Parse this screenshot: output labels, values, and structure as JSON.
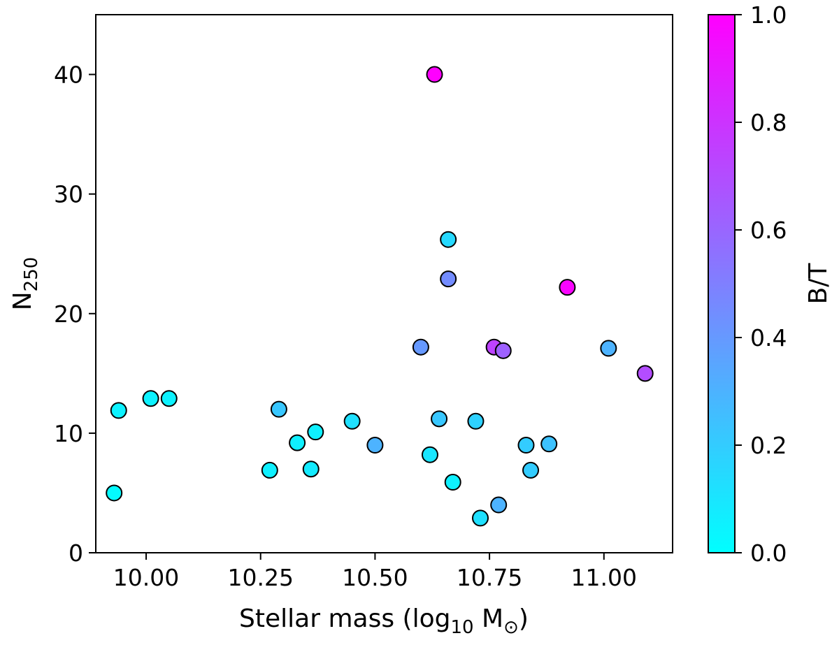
{
  "chart_data": {
    "type": "scatter",
    "title": "",
    "xlabel": {
      "main": "Stellar mass (log",
      "sub": "10",
      "tail": " M",
      "symbol": "⊙",
      "close": ")"
    },
    "ylabel": {
      "main": "N",
      "sub": "250"
    },
    "xlim": [
      9.89,
      11.15
    ],
    "ylim": [
      0,
      45
    ],
    "xticks": [
      10.0,
      10.25,
      10.5,
      10.75,
      11.0
    ],
    "xtick_labels": [
      "10.00",
      "10.25",
      "10.50",
      "10.75",
      "11.00"
    ],
    "yticks": [
      0,
      10,
      20,
      30,
      40
    ],
    "ytick_labels": [
      "0",
      "10",
      "20",
      "30",
      "40"
    ],
    "grid": false,
    "colorbar": {
      "label": "B/T",
      "range": [
        0,
        1
      ],
      "ticks": [
        0.0,
        0.2,
        0.4,
        0.6,
        0.8,
        1.0
      ],
      "tick_labels": [
        "0.0",
        "0.2",
        "0.4",
        "0.6",
        "0.8",
        "1.0"
      ],
      "colormap": "cool",
      "color_low": "#00ffff",
      "color_high": "#ff00ff"
    },
    "marker_edge_color": "#000000",
    "points": [
      {
        "x": 9.93,
        "y": 5.0,
        "c": 0.02
      },
      {
        "x": 9.94,
        "y": 11.9,
        "c": 0.05
      },
      {
        "x": 10.01,
        "y": 12.9,
        "c": 0.05
      },
      {
        "x": 10.05,
        "y": 12.9,
        "c": 0.05
      },
      {
        "x": 10.27,
        "y": 6.9,
        "c": 0.06
      },
      {
        "x": 10.29,
        "y": 12.0,
        "c": 0.22
      },
      {
        "x": 10.33,
        "y": 9.2,
        "c": 0.06
      },
      {
        "x": 10.36,
        "y": 7.0,
        "c": 0.08
      },
      {
        "x": 10.37,
        "y": 10.1,
        "c": 0.06
      },
      {
        "x": 10.45,
        "y": 11.0,
        "c": 0.12
      },
      {
        "x": 10.5,
        "y": 9.0,
        "c": 0.3
      },
      {
        "x": 10.6,
        "y": 17.2,
        "c": 0.4
      },
      {
        "x": 10.62,
        "y": 8.2,
        "c": 0.1
      },
      {
        "x": 10.63,
        "y": 40.0,
        "c": 1.0
      },
      {
        "x": 10.64,
        "y": 11.2,
        "c": 0.22
      },
      {
        "x": 10.66,
        "y": 26.2,
        "c": 0.15
      },
      {
        "x": 10.66,
        "y": 22.9,
        "c": 0.45
      },
      {
        "x": 10.67,
        "y": 5.9,
        "c": 0.06
      },
      {
        "x": 10.72,
        "y": 11.0,
        "c": 0.18
      },
      {
        "x": 10.73,
        "y": 2.9,
        "c": 0.12
      },
      {
        "x": 10.76,
        "y": 17.2,
        "c": 0.74
      },
      {
        "x": 10.77,
        "y": 4.0,
        "c": 0.3
      },
      {
        "x": 10.78,
        "y": 16.9,
        "c": 0.62
      },
      {
        "x": 10.83,
        "y": 9.0,
        "c": 0.2
      },
      {
        "x": 10.84,
        "y": 6.9,
        "c": 0.2
      },
      {
        "x": 10.88,
        "y": 9.1,
        "c": 0.24
      },
      {
        "x": 10.92,
        "y": 22.2,
        "c": 0.98
      },
      {
        "x": 11.01,
        "y": 17.1,
        "c": 0.3
      },
      {
        "x": 11.09,
        "y": 15.0,
        "c": 0.7
      }
    ]
  }
}
